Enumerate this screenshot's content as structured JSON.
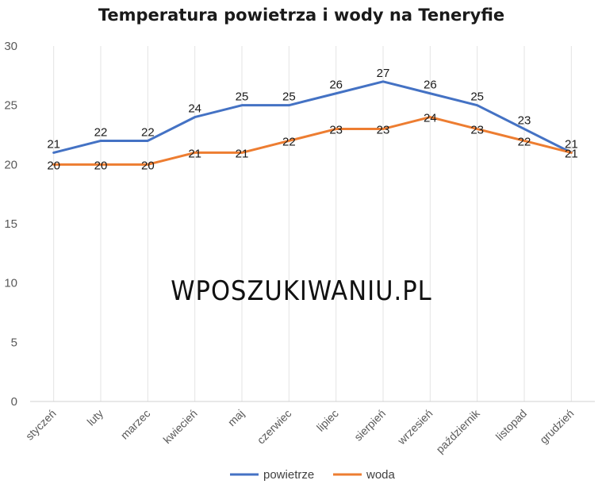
{
  "chart_data": {
    "type": "line",
    "title": "Temperatura powietrza i wody na Teneryfie",
    "categories": [
      "styczeń",
      "luty",
      "marzec",
      "kwiecień",
      "maj",
      "czerwiec",
      "lipiec",
      "sierpień",
      "wrzesień",
      "październik",
      "listopad",
      "grudzień"
    ],
    "series": [
      {
        "name": "powietrze",
        "color": "#4472C4",
        "values": [
          21,
          22,
          22,
          24,
          25,
          25,
          26,
          27,
          26,
          25,
          23,
          21
        ]
      },
      {
        "name": "woda",
        "color": "#ED7D31",
        "values": [
          20,
          20,
          20,
          21,
          21,
          22,
          23,
          23,
          24,
          23,
          22,
          21
        ]
      }
    ],
    "ylim": [
      0,
      30
    ],
    "yticks": [
      0,
      5,
      10,
      15,
      20,
      25,
      30
    ],
    "grid": "vertical",
    "legend": "bottom",
    "data_labels": true,
    "watermark": "WPOSZUKIWANIU.PL"
  }
}
